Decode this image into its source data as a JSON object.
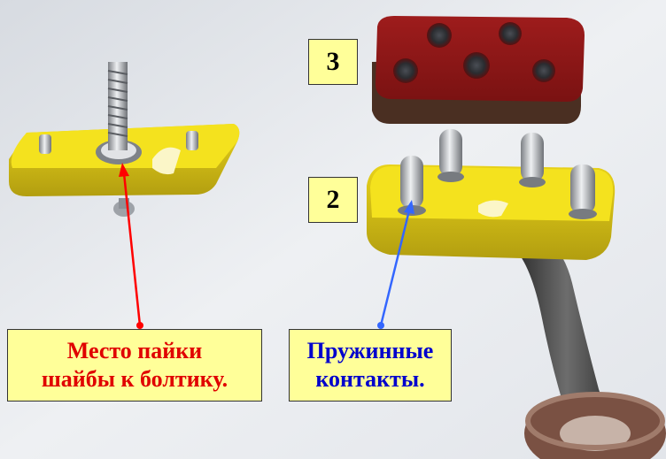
{
  "labels": {
    "part3": "3",
    "part2": "2",
    "solder_spot": "Место пайки\nшайбы к болтику.",
    "spring_contacts": "Пружинные\nконтакты."
  },
  "colors": {
    "label_bg": "#ffff99",
    "solder_spot_text": "#e00000",
    "spring_contacts_text": "#0000cc",
    "solder_arrow": "#ff0000",
    "contacts_arrow": "#3366ff"
  }
}
